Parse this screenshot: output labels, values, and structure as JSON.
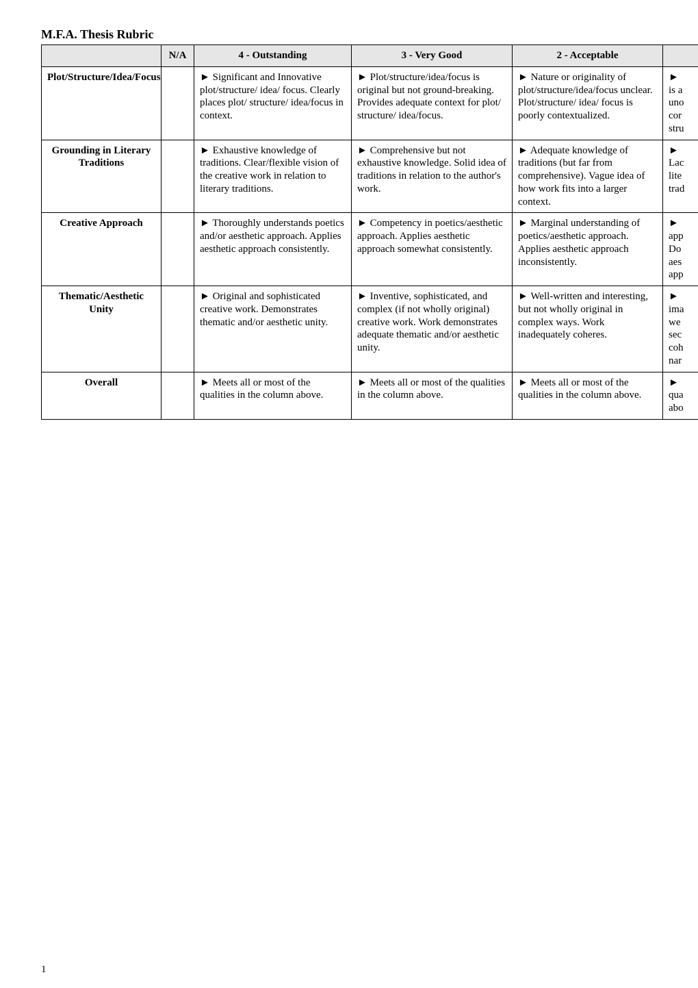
{
  "title": "M.F.A. Thesis Rubric",
  "page_number": "1",
  "colors": {
    "header_bg": "#e6e6e6",
    "border": "#000000",
    "text": "#000000",
    "page_bg": "#ffffff"
  },
  "headers": {
    "criteria": "",
    "na": "N/A",
    "c4": "4 - Outstanding",
    "c3": "3 - Very Good",
    "c2": "2 - Acceptable",
    "c1": ""
  },
  "rows": {
    "plot": {
      "criteria": "Plot/Structure/Idea/Focus",
      "c4": "► Significant and Innovative plot/structure/ idea/ focus. Clearly places plot/ structure/ idea/focus in context.",
      "c3": "► Plot/structure/idea/focus is original but not ground-breaking. Provides adequate context for plot/ structure/ idea/focus.",
      "c2": "► Nature or originality of plot/structure/idea/focus unclear. Plot/structure/ idea/ focus is poorly contextualized.",
      "c1": "►\nis a\nuno\ncor\nstru"
    },
    "grounding": {
      "criteria": "Grounding in Literary Traditions",
      "c4": "► Exhaustive knowledge of traditions. Clear/flexible vision of the creative work in relation to literary traditions.",
      "c3": "► Comprehensive but not exhaustive knowledge. Solid idea of traditions in relation to the author's work.",
      "c2": "► Adequate knowledge of traditions (but far from comprehensive). Vague idea of how work fits into a larger context.",
      "c1": "►\nLac\nlite\ntrad"
    },
    "creative": {
      "criteria": "Creative Approach",
      "c4": "► Thoroughly understands poetics and/or aesthetic approach. Applies aesthetic approach consistently.",
      "c3": "► Competency in poetics/aesthetic approach. Applies aesthetic approach somewhat consistently.",
      "c2": "► Marginal understanding of poetics/aesthetic approach. Applies aesthetic approach inconsistently.",
      "c1": "►\napp\nDo\naes\napp"
    },
    "thematic": {
      "criteria": "Thematic/Aesthetic Unity",
      "c4": "► Original and sophisticated creative work. Demonstrates thematic and/or aesthetic unity.",
      "c3": "► Inventive, sophisticated, and complex (if not wholly original) creative work. Work demonstrates adequate thematic and/or aesthetic unity.",
      "c2": "► Well-written and interesting, but not wholly original in complex ways. Work inadequately coheres.",
      "c1": "►\nima\nwe\nsec\ncoh\nnar"
    },
    "overall": {
      "criteria": "Overall",
      "c4": "► Meets all or most of the qualities in the column above.",
      "c3": "► Meets all or most of the qualities in the column above.",
      "c2": "► Meets all or most of the qualities in the column above.",
      "c1": "►\nqua\nabo"
    }
  }
}
